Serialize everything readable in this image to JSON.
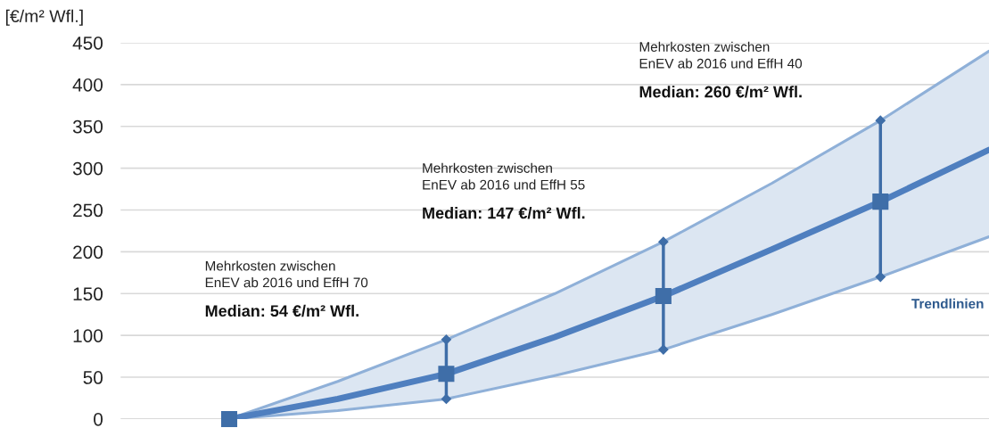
{
  "chart_data": {
    "type": "line",
    "ylabel": "[€/m² Wfl.]",
    "categories": [
      null,
      null,
      null,
      null,
      null,
      null,
      null,
      null
    ],
    "tick_labels": "y",
    "ylim": [
      0,
      450
    ],
    "yticks": [
      0,
      50,
      100,
      150,
      200,
      250,
      300,
      350,
      400,
      450
    ],
    "grid": "y",
    "legend": false,
    "series": [
      {
        "type": "line",
        "color": "#8fb0d8",
        "values": [
          0,
          45,
          95,
          150,
          212,
          282,
          357,
          440
        ]
      },
      {
        "type": "line",
        "color": "#8fb0d8",
        "values": [
          0,
          10,
          24,
          52,
          83,
          125,
          170,
          218
        ]
      },
      {
        "type": "line",
        "color": "#4f7fbf",
        "values": [
          0,
          24,
          54,
          98,
          147,
          203,
          260,
          322
        ],
        "lower": [
          0,
          10,
          24,
          52,
          83,
          125,
          170,
          218
        ],
        "upper": [
          0,
          45,
          95,
          150,
          212,
          282,
          357,
          440
        ]
      },
      {
        "type": "scatter",
        "color": "#3f6ea8",
        "marker": "square",
        "values": [
          0,
          null,
          54,
          null,
          147,
          null,
          260,
          null
        ],
        "errors": [
          null,
          null,
          [
            24,
            95
          ],
          null,
          [
            83,
            212
          ],
          null,
          [
            170,
            357
          ],
          null
        ]
      }
    ],
    "annotations": [
      "Mehrkosten zwischen\nEnEV ab 2016 und EffH 70",
      "Median: 54 €/m² Wfl.",
      "Mehrkosten zwischen\nEnEV ab 2016 und EffH 55",
      "Median: 147 €/m² Wfl.",
      "Mehrkosten zwischen\nEnEV ab 2016 und EffH 40",
      "Median: 260 €/m² Wfl.",
      "Trendlinien"
    ]
  }
}
